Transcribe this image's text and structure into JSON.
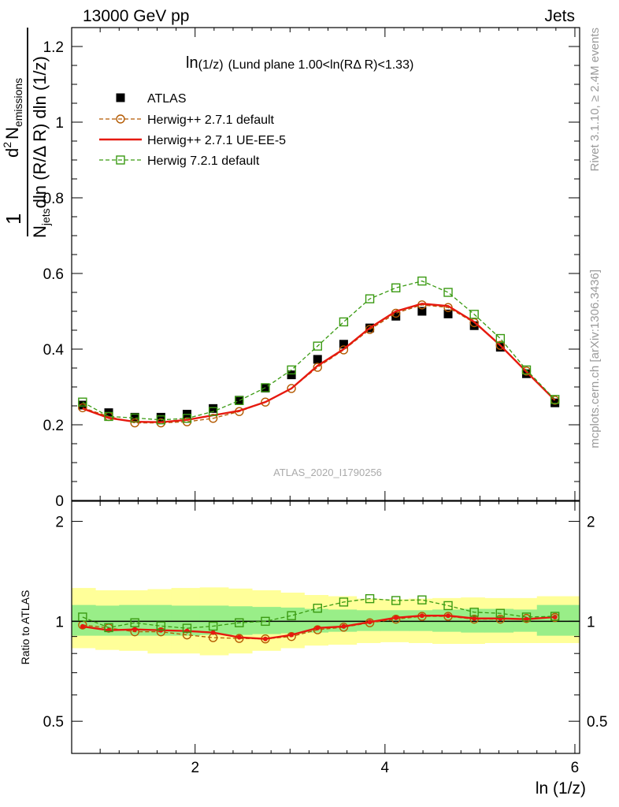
{
  "header": {
    "left": "13000 GeV pp",
    "right": "Jets"
  },
  "side_text": {
    "top": "Rivet 3.1.10, ≥ 2.4M events",
    "bottom": "mcplots.cern.ch [arXiv:1306.3436]"
  },
  "watermark": "ATLAS_2020_I1790256",
  "chart_data": [
    {
      "type": "scatter",
      "title": "ln(1/z) (Lund plane 1.00<ln(RΔ R)<1.33)",
      "title_parts": {
        "a": "ln",
        "b": "(1/z)",
        "c": "(Lund plane 1.00<ln(RΔ R)<1.33)"
      },
      "ylabel_parts": {
        "one": "1",
        "n": "N",
        "n_sub": "jets",
        "denom": "dln (R/Δ R) dln (1/z)",
        "d2": "d",
        "d2_sup": "2",
        "num_n": "N",
        "num_sub": "emissions"
      },
      "xlim": [
        0.7,
        6.05
      ],
      "ylim": [
        0,
        1.25
      ],
      "yticks": [
        "0",
        "0.2",
        "0.4",
        "0.6",
        "0.8",
        "1",
        "1.2"
      ],
      "x": [
        0.815,
        1.09,
        1.365,
        1.64,
        1.915,
        2.19,
        2.465,
        2.74,
        3.015,
        3.29,
        3.565,
        3.84,
        4.115,
        4.39,
        4.665,
        4.94,
        5.215,
        5.49,
        5.79
      ],
      "legend_position": "top-left",
      "series": [
        {
          "name": "ATLAS",
          "color": "#000000",
          "marker": "filled-square",
          "values": [
            0.252,
            0.232,
            0.22,
            0.22,
            0.228,
            0.243,
            0.265,
            0.297,
            0.332,
            0.373,
            0.413,
            0.456,
            0.487,
            0.5,
            0.493,
            0.462,
            0.405,
            0.335,
            0.258
          ]
        },
        {
          "name": "Herwig++ 2.7.1 default",
          "color": "#b35900",
          "marker": "open-circle",
          "dash": "dashed",
          "values": [
            0.245,
            0.222,
            0.205,
            0.205,
            0.208,
            0.217,
            0.235,
            0.26,
            0.296,
            0.352,
            0.398,
            0.452,
            0.495,
            0.517,
            0.51,
            0.47,
            0.41,
            0.342,
            0.265
          ]
        },
        {
          "name": "Herwig++ 2.7.1 UE-EE-5",
          "color": "#e6190f",
          "marker": "none",
          "dash": "solid",
          "values": [
            0.243,
            0.218,
            0.208,
            0.207,
            0.213,
            0.225,
            0.237,
            0.26,
            0.296,
            0.356,
            0.4,
            0.456,
            0.5,
            0.52,
            0.514,
            0.472,
            0.41,
            0.34,
            0.265
          ]
        },
        {
          "name": "Herwig 7.2.1 default",
          "color": "#3a9a12",
          "marker": "open-square",
          "dash": "dashed",
          "values": [
            0.26,
            0.222,
            0.218,
            0.213,
            0.217,
            0.235,
            0.264,
            0.298,
            0.345,
            0.408,
            0.472,
            0.533,
            0.562,
            0.58,
            0.55,
            0.492,
            0.428,
            0.345,
            0.267
          ]
        }
      ]
    },
    {
      "type": "line",
      "ylabel": "Ratio to ATLAS",
      "xlabel": "ln (1/z)",
      "xlim": [
        0.7,
        6.05
      ],
      "ylim": [
        0.4,
        2.3
      ],
      "yscale": "log",
      "xticks": [
        "2",
        "4",
        "6"
      ],
      "yticks": [
        "0.5",
        "1",
        "2"
      ],
      "x": [
        0.815,
        1.09,
        1.365,
        1.64,
        1.915,
        2.19,
        2.465,
        2.74,
        3.015,
        3.29,
        3.565,
        3.84,
        4.115,
        4.39,
        4.665,
        4.94,
        5.215,
        5.49,
        5.79
      ],
      "bin_edges": [
        0.7,
        0.95,
        1.2,
        1.5,
        1.75,
        2.05,
        2.35,
        2.6,
        2.9,
        3.15,
        3.4,
        3.7,
        3.95,
        4.25,
        4.5,
        4.8,
        5.05,
        5.35,
        5.6,
        6.05
      ],
      "band_green": [
        [
          0.905,
          1.12
        ],
        [
          0.905,
          1.115
        ],
        [
          0.905,
          1.12
        ],
        [
          0.905,
          1.12
        ],
        [
          0.905,
          1.115
        ],
        [
          0.91,
          1.115
        ],
        [
          0.91,
          1.11
        ],
        [
          0.915,
          1.105
        ],
        [
          0.92,
          1.1
        ],
        [
          0.925,
          1.09
        ],
        [
          0.93,
          1.085
        ],
        [
          0.935,
          1.08
        ],
        [
          0.935,
          1.08
        ],
        [
          0.935,
          1.08
        ],
        [
          0.93,
          1.085
        ],
        [
          0.925,
          1.09
        ],
        [
          0.925,
          1.09
        ],
        [
          0.93,
          1.085
        ],
        [
          0.905,
          1.12
        ]
      ],
      "band_yellow": [
        [
          0.83,
          1.26
        ],
        [
          0.82,
          1.24
        ],
        [
          0.815,
          1.24
        ],
        [
          0.8,
          1.25
        ],
        [
          0.8,
          1.26
        ],
        [
          0.79,
          1.265
        ],
        [
          0.8,
          1.255
        ],
        [
          0.815,
          1.24
        ],
        [
          0.83,
          1.22
        ],
        [
          0.845,
          1.2
        ],
        [
          0.85,
          1.19
        ],
        [
          0.86,
          1.17
        ],
        [
          0.865,
          1.165
        ],
        [
          0.86,
          1.17
        ],
        [
          0.855,
          1.175
        ],
        [
          0.855,
          1.18
        ],
        [
          0.86,
          1.175
        ],
        [
          0.86,
          1.175
        ],
        [
          0.86,
          1.19
        ]
      ],
      "series": [
        {
          "name": "Herwig++ 2.7.1 default",
          "color": "#b35900",
          "marker": "open-circle",
          "dash": "dashed",
          "values": [
            0.975,
            0.955,
            0.93,
            0.93,
            0.91,
            0.893,
            0.888,
            0.885,
            0.9,
            0.943,
            0.96,
            0.99,
            1.015,
            1.035,
            1.035,
            1.015,
            1.015,
            1.02,
            1.027
          ]
        },
        {
          "name": "Herwig++ 2.7.1 UE-EE-5",
          "color": "#e6190f",
          "marker": "small-dot",
          "dash": "solid",
          "values": [
            0.965,
            0.94,
            0.945,
            0.94,
            0.935,
            0.925,
            0.895,
            0.885,
            0.91,
            0.955,
            0.965,
            0.995,
            1.025,
            1.04,
            1.04,
            1.02,
            1.02,
            1.015,
            1.03
          ]
        },
        {
          "name": "Herwig 7.2.1 default",
          "color": "#3a9a12",
          "marker": "open-square",
          "dash": "dashed",
          "values": [
            1.03,
            0.957,
            0.99,
            0.968,
            0.953,
            0.967,
            0.99,
            1.0,
            1.04,
            1.095,
            1.143,
            1.17,
            1.155,
            1.16,
            1.115,
            1.065,
            1.057,
            1.03,
            1.035
          ]
        }
      ]
    }
  ]
}
